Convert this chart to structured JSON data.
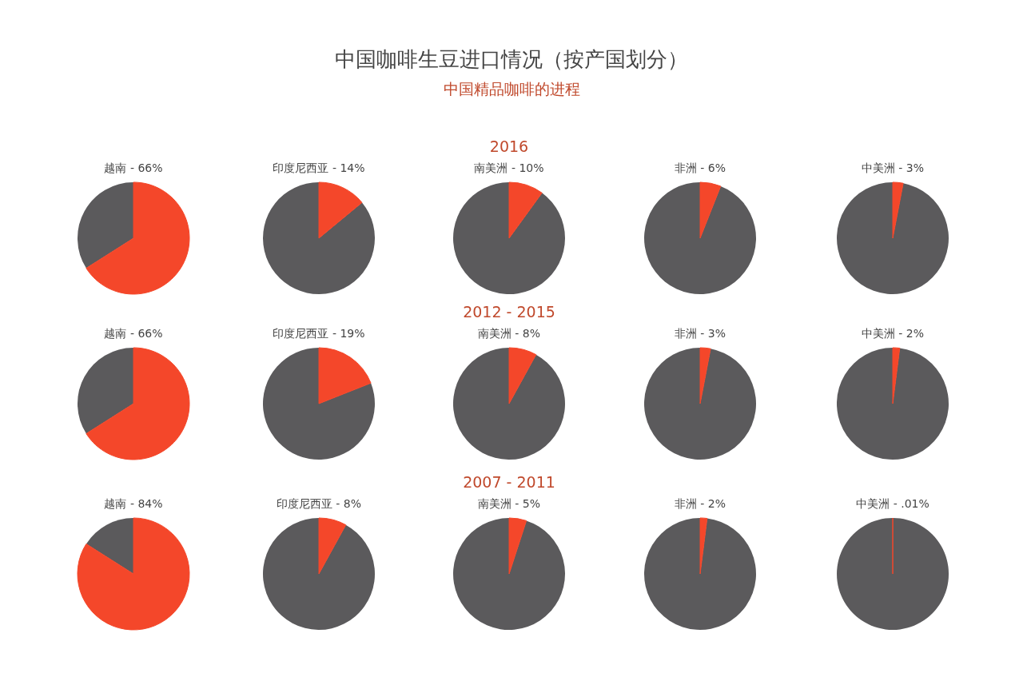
{
  "chart_data": [
    {
      "type": "other",
      "title": "中国咖啡生豆进口情况（按产国划分）",
      "subtitle": "中国精品咖啡的进程"
    },
    {
      "type": "pie",
      "categories": [
        "越南",
        null
      ],
      "values": [
        66,
        34
      ],
      "value_labels": [
        "66%",
        null
      ],
      "colors": [
        "#f4472a",
        "#5b5a5c"
      ]
    },
    {
      "type": "pie",
      "categories": [
        "印度尼西亚",
        null
      ],
      "values": [
        14,
        86
      ],
      "value_labels": [
        "14%",
        null
      ],
      "colors": [
        "#f4472a",
        "#5b5a5c"
      ]
    },
    {
      "type": "pie",
      "annotations": [
        "2016"
      ],
      "categories": [
        "南美洲",
        null
      ],
      "values": [
        10,
        90
      ],
      "value_labels": [
        "10%",
        null
      ],
      "colors": [
        "#f4472a",
        "#5b5a5c"
      ]
    },
    {
      "type": "pie",
      "categories": [
        "非洲",
        null
      ],
      "values": [
        6,
        94
      ],
      "value_labels": [
        "6%",
        null
      ],
      "colors": [
        "#f4472a",
        "#5b5a5c"
      ]
    },
    {
      "type": "pie",
      "categories": [
        "中美洲",
        null
      ],
      "values": [
        3,
        97
      ],
      "value_labels": [
        "3%",
        null
      ],
      "colors": [
        "#f4472a",
        "#5b5a5c"
      ]
    },
    {
      "type": "pie",
      "categories": [
        "越南",
        null
      ],
      "values": [
        66,
        34
      ],
      "value_labels": [
        "66%",
        null
      ],
      "colors": [
        "#f4472a",
        "#5b5a5c"
      ]
    },
    {
      "type": "pie",
      "categories": [
        "印度尼西亚",
        null
      ],
      "values": [
        19,
        81
      ],
      "value_labels": [
        "19%",
        null
      ],
      "colors": [
        "#f4472a",
        "#5b5a5c"
      ]
    },
    {
      "type": "pie",
      "annotations": [
        "2012 - 2015"
      ],
      "categories": [
        "南美洲",
        null
      ],
      "values": [
        8,
        92
      ],
      "value_labels": [
        "8%",
        null
      ],
      "colors": [
        "#f4472a",
        "#5b5a5c"
      ]
    },
    {
      "type": "pie",
      "categories": [
        "非洲",
        null
      ],
      "values": [
        3,
        97
      ],
      "value_labels": [
        "3%",
        null
      ],
      "colors": [
        "#f4472a",
        "#5b5a5c"
      ]
    },
    {
      "type": "pie",
      "categories": [
        "中美洲",
        null
      ],
      "values": [
        2,
        98
      ],
      "value_labels": [
        "2%",
        null
      ],
      "colors": [
        "#f4472a",
        "#5b5a5c"
      ]
    },
    {
      "type": "pie",
      "categories": [
        "越南",
        null
      ],
      "values": [
        84,
        16
      ],
      "value_labels": [
        "84%",
        null
      ],
      "colors": [
        "#f4472a",
        "#5b5a5c"
      ]
    },
    {
      "type": "pie",
      "categories": [
        "印度尼西亚",
        null
      ],
      "values": [
        8,
        92
      ],
      "value_labels": [
        "8%",
        null
      ],
      "colors": [
        "#f4472a",
        "#5b5a5c"
      ]
    },
    {
      "type": "pie",
      "annotations": [
        "2007 - 2011"
      ],
      "categories": [
        "南美洲",
        null
      ],
      "values": [
        5,
        95
      ],
      "value_labels": [
        "5%",
        null
      ],
      "colors": [
        "#f4472a",
        "#5b5a5c"
      ]
    },
    {
      "type": "pie",
      "categories": [
        "非洲",
        null
      ],
      "values": [
        2,
        98
      ],
      "value_labels": [
        "2%",
        null
      ],
      "colors": [
        "#f4472a",
        "#5b5a5c"
      ]
    },
    {
      "type": "pie",
      "categories": [
        "中美洲",
        null
      ],
      "values": [
        0.01,
        99.99
      ],
      "value_labels": [
        ".01%",
        null
      ],
      "colors": [
        "#f4472a",
        "#5b5a5c"
      ]
    }
  ]
}
